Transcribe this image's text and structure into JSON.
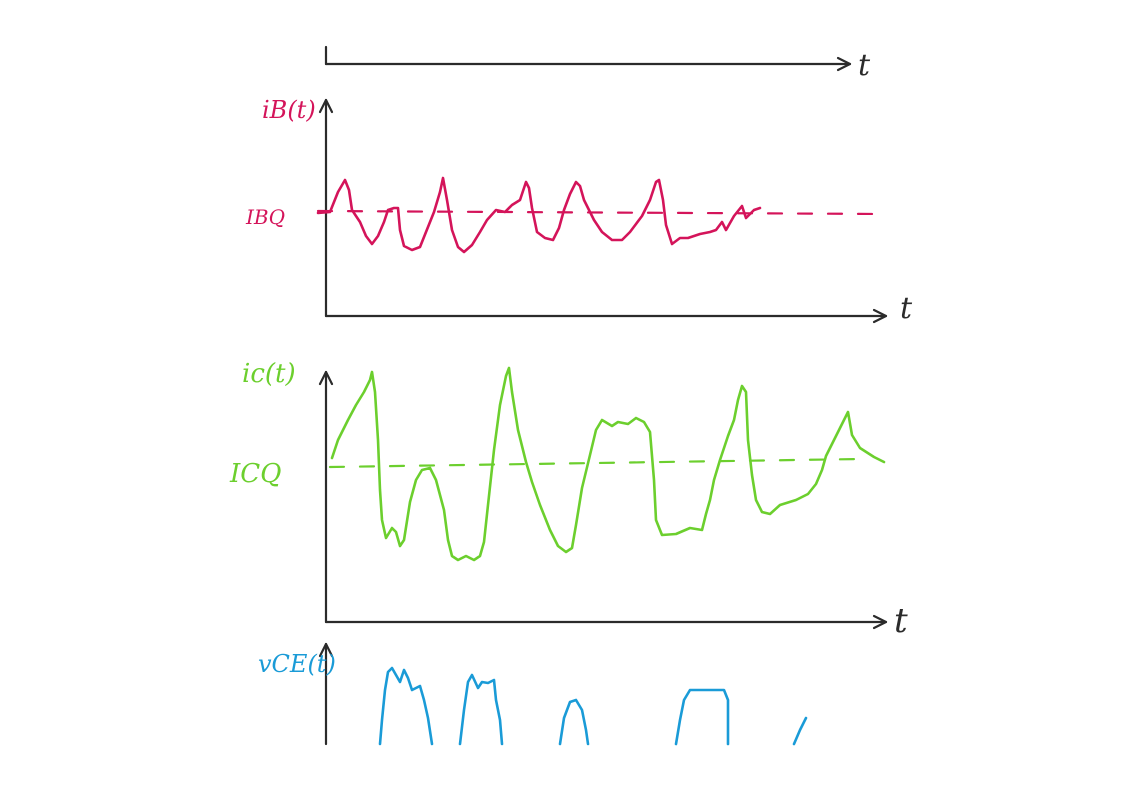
{
  "colors": {
    "axis": "#2b2b2b",
    "base_current": "#d4145a",
    "collector_current": "#6ccf2e",
    "output_voltage": "#1a9bd7"
  },
  "top_axis": {
    "label": "t"
  },
  "panel_ib": {
    "ylabel": "iB(t)",
    "quiescent_label": "IBQ",
    "xlabel": "t"
  },
  "panel_ic": {
    "ylabel": "ic(t)",
    "quiescent_label": "ICQ",
    "xlabel": "t"
  },
  "panel_vce": {
    "ylabel": "vCE(t)"
  }
}
